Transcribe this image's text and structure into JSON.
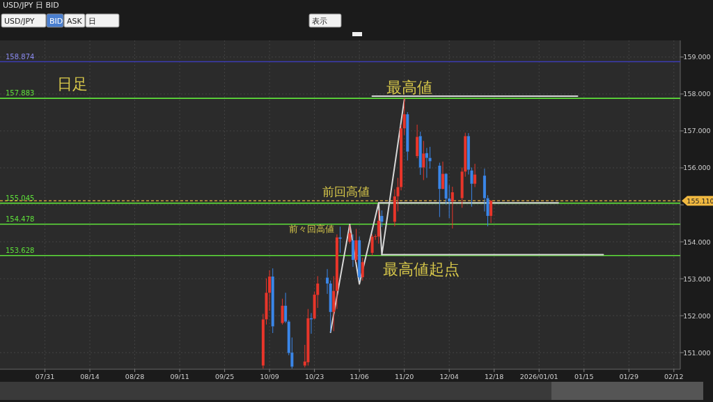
{
  "chart_data": {
    "type": "candlestick",
    "title": "USD/JPY 日 BID",
    "annotations": [
      "日足",
      "最高値",
      "前回高値",
      "前々回高値",
      "最高値起点",
      "USD/JPY",
      "BID",
      "ASK",
      "日",
      "表示"
    ],
    "xlim": [
      "2025-07-17",
      "2026-02-14"
    ],
    "ylim": [
      150.55,
      159.45
    ],
    "xticks": [
      {
        "value": "2025-07-31",
        "label": "07/31"
      },
      {
        "value": "2025-08-14",
        "label": "08/14"
      },
      {
        "value": "2025-08-28",
        "label": "08/28"
      },
      {
        "value": "2025-09-11",
        "label": "09/11"
      },
      {
        "value": "2025-09-25",
        "label": "09/25"
      },
      {
        "value": "2025-10-09",
        "label": "10/09"
      },
      {
        "value": "2025-10-23",
        "label": "10/23"
      },
      {
        "value": "2025-11-06",
        "label": "11/06"
      },
      {
        "value": "2025-11-20",
        "label": "11/20"
      },
      {
        "value": "2025-12-04",
        "label": "12/04"
      },
      {
        "value": "2025-12-18",
        "label": "12/18"
      },
      {
        "value": "2026-01-01",
        "label": "2026/01/01"
      },
      {
        "value": "2026-01-15",
        "label": "01/15"
      },
      {
        "value": "2026-01-29",
        "label": "01/29"
      },
      {
        "value": "2026-02-12",
        "label": "02/12"
      }
    ],
    "yticks": [
      {
        "value": 151,
        "label": "151.000"
      },
      {
        "value": 152,
        "label": "152.000"
      },
      {
        "value": 153,
        "label": "153.000"
      },
      {
        "value": 154,
        "label": "154.000"
      },
      {
        "value": 155,
        "label": null
      },
      {
        "value": 156,
        "label": "156.000"
      },
      {
        "value": 157,
        "label": "157.000"
      },
      {
        "value": 158,
        "label": "158.000"
      },
      {
        "value": 159,
        "label": "159.000"
      }
    ],
    "grid": true,
    "ref_lines": [
      {
        "axis": "y",
        "value": 158.874,
        "label": "158.874",
        "color": "#3c3cb4",
        "line_style": "solid"
      },
      {
        "axis": "y",
        "value": 157.883,
        "label": "157.883",
        "color": "#5ee03a",
        "line_style": "solid"
      },
      {
        "axis": "y",
        "value": 155.045,
        "label": "155.045",
        "color": "#5ee03a",
        "line_style": "solid"
      },
      {
        "axis": "y",
        "value": 154.478,
        "label": "154.478",
        "color": "#5ee03a",
        "line_style": "solid"
      },
      {
        "axis": "y",
        "value": 153.628,
        "label": "153.628",
        "color": "#5ee03a",
        "line_style": "solid"
      },
      {
        "axis": "y",
        "value": 155.11,
        "label": "155.110",
        "color": "#f0b840",
        "line_style": "dashed"
      }
    ],
    "series": [
      {
        "x": [
          "2025-10-07",
          "2025-10-08",
          "2025-10-09",
          "2025-10-10",
          "2025-10-13",
          "2025-10-14",
          "2025-10-15",
          "2025-10-16",
          "2025-10-20",
          "2025-10-21",
          "2025-10-22",
          "2025-10-23",
          "2025-10-24",
          "2025-10-27",
          "2025-10-28",
          "2025-10-29",
          "2025-10-30",
          "2025-10-31",
          "2025-11-03",
          "2025-11-04",
          "2025-11-05",
          "2025-11-06",
          "2025-11-07",
          "2025-11-10",
          "2025-11-11",
          "2025-11-12",
          "2025-11-13",
          "2025-11-17",
          "2025-11-18",
          "2025-11-19",
          "2025-11-20",
          "2025-11-21",
          "2025-11-24",
          "2025-11-25",
          "2025-11-26",
          "2025-11-27",
          "2025-11-28",
          "2025-12-01",
          "2025-12-02",
          "2025-12-03",
          "2025-12-04",
          "2025-12-05",
          "2025-12-08",
          "2025-12-09",
          "2025-12-10",
          "2025-12-11",
          "2025-12-12",
          "2025-12-15",
          "2025-12-16",
          "2025-12-17"
        ],
        "ohlc": [
          [
            150.65,
            152.05,
            150.57,
            151.9
          ],
          [
            151.9,
            153.01,
            151.76,
            152.62
          ],
          [
            152.62,
            153.23,
            152.13,
            153.06
          ],
          [
            153.06,
            153.28,
            151.53,
            151.71
          ],
          [
            151.8,
            152.46,
            151.76,
            152.27
          ],
          [
            152.27,
            152.62,
            151.8,
            151.84
          ],
          [
            151.84,
            151.88,
            150.93,
            150.99
          ],
          [
            151.0,
            151.41,
            150.57,
            150.62
          ],
          [
            150.65,
            151.21,
            150.6,
            150.76
          ],
          [
            150.74,
            152.18,
            150.65,
            151.93
          ],
          [
            151.93,
            152.07,
            151.51,
            151.9
          ],
          [
            151.92,
            152.65,
            151.9,
            152.57
          ],
          [
            152.56,
            153.07,
            152.21,
            152.87
          ],
          [
            153.03,
            153.26,
            152.59,
            152.87
          ],
          [
            152.87,
            152.95,
            151.55,
            152.1
          ],
          [
            152.1,
            153.07,
            151.58,
            152.67
          ],
          [
            152.67,
            154.2,
            152.18,
            154.12
          ],
          [
            154.12,
            154.41,
            153.7,
            154.08
          ],
          [
            154.0,
            154.45,
            153.95,
            154.23
          ],
          [
            154.04,
            154.2,
            153.32,
            153.51
          ],
          [
            153.51,
            154.35,
            153.45,
            154.04
          ],
          [
            154.04,
            154.14,
            152.95,
            153.04
          ],
          [
            153.04,
            153.57,
            152.95,
            153.45
          ],
          [
            153.7,
            154.2,
            153.63,
            154.14
          ],
          [
            154.14,
            154.2,
            154.05,
            154.15
          ],
          [
            154.14,
            154.85,
            153.95,
            154.57
          ],
          [
            154.7,
            154.85,
            154.4,
            154.54
          ],
          [
            154.54,
            155.42,
            154.42,
            155.23
          ],
          [
            155.23,
            155.73,
            154.82,
            155.48
          ],
          [
            155.48,
            157.17,
            155.39,
            157.07
          ],
          [
            157.07,
            157.89,
            156.89,
            157.45
          ],
          [
            157.45,
            157.51,
            156.2,
            156.44
          ],
          [
            156.32,
            157.17,
            156.26,
            156.84
          ],
          [
            156.86,
            156.98,
            155.81,
            156.01
          ],
          [
            156.01,
            156.73,
            155.67,
            156.39
          ],
          [
            156.4,
            156.54,
            155.73,
            156.27
          ],
          [
            156.27,
            156.57,
            155.98,
            156.18
          ],
          [
            156.06,
            156.14,
            154.67,
            155.43
          ],
          [
            155.43,
            156.17,
            155.42,
            155.84
          ],
          [
            155.84,
            155.86,
            155.01,
            155.17
          ],
          [
            155.17,
            155.54,
            154.64,
            155.09
          ],
          [
            155.09,
            155.49,
            154.36,
            155.34
          ],
          [
            155.18,
            156.01,
            154.92,
            155.9
          ],
          [
            155.9,
            156.95,
            155.76,
            156.86
          ],
          [
            156.86,
            156.94,
            155.82,
            155.95
          ],
          [
            155.93,
            156.01,
            154.95,
            155.57
          ],
          [
            155.57,
            156.11,
            155.48,
            155.82
          ],
          [
            155.79,
            155.98,
            154.82,
            155.18
          ],
          [
            155.18,
            155.26,
            154.42,
            154.7
          ],
          [
            154.7,
            155.13,
            154.51,
            155.11
          ]
        ],
        "colors": [
          "#e8352a",
          "#e8352a",
          "#e8352a",
          "#3a86e8",
          "#e8352a",
          "#3a86e8",
          "#3a86e8",
          "#3a86e8",
          "#e8352a",
          "#e8352a",
          "#3a86e8",
          "#e8352a",
          "#e8352a",
          "#3a86e8",
          "#3a86e8",
          "#e8352a",
          "#e8352a",
          "#3a86e8",
          "#e8352a",
          "#3a86e8",
          "#e8352a",
          "#3a86e8",
          "#e8352a",
          "#e8352a",
          "#e8352a",
          "#e8352a",
          "#3a86e8",
          "#e8352a",
          "#e8352a",
          "#e8352a",
          "#e8352a",
          "#3a86e8",
          "#e8352a",
          "#3a86e8",
          "#e8352a",
          "#3a86e8",
          "#3a86e8",
          "#3a86e8",
          "#e8352a",
          "#3a86e8",
          "#3a86e8",
          "#e8352a",
          "#e8352a",
          "#e8352a",
          "#3a86e8",
          "#3a86e8",
          "#e8352a",
          "#3a86e8",
          "#3a86e8",
          "#e8352a"
        ]
      },
      {
        "type": "line",
        "color": "#d8d8d8",
        "x": [
          "2025-10-28",
          "2025-11-03",
          "2025-11-06",
          "2025-11-12",
          "2025-11-13",
          "2025-11-20"
        ],
        "values": [
          151.55,
          154.47,
          152.86,
          155.05,
          153.65,
          157.85
        ]
      },
      {
        "type": "line",
        "color": "#d8d8d8",
        "x": [
          "2025-11-10",
          "2026-01-13"
        ],
        "values": [
          157.94,
          157.94
        ]
      },
      {
        "type": "line",
        "color": "#d8d8d8",
        "x": [
          "2025-11-12",
          "2026-01-07"
        ],
        "values": [
          155.05,
          155.05
        ]
      },
      {
        "type": "line",
        "color": "#d8d8d8",
        "x": [
          "2025-11-13",
          "2026-01-21"
        ],
        "values": [
          153.65,
          153.65
        ]
      }
    ]
  }
}
